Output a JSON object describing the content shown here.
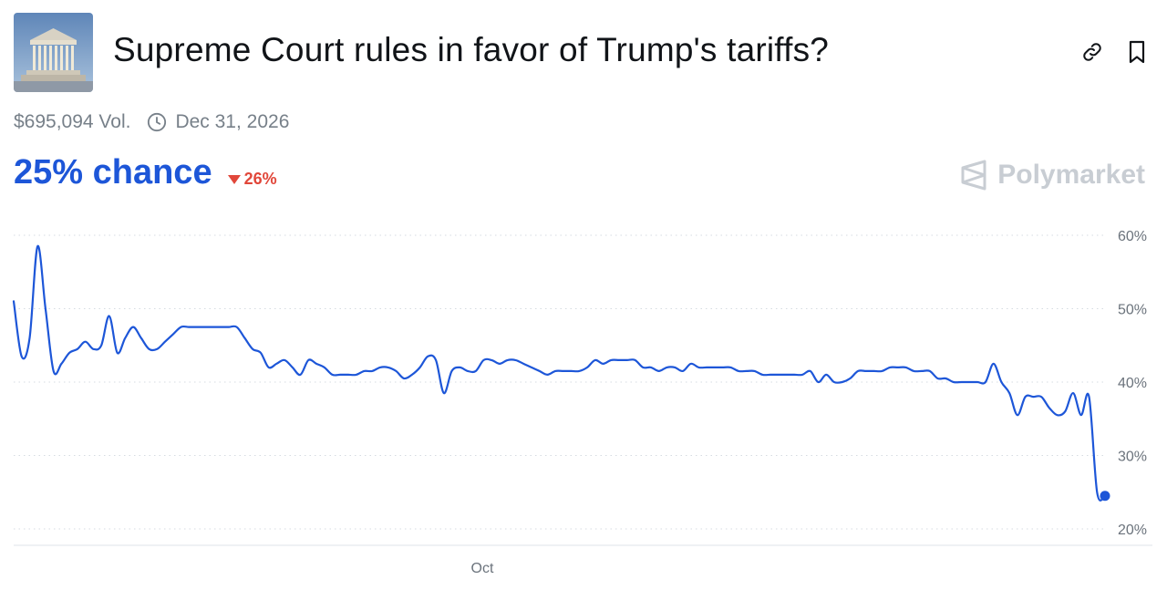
{
  "header": {
    "title": "Supreme Court rules in favor of Trump's tariffs?",
    "thumbnail_icon": "supreme-court-building-image",
    "actions": [
      {
        "name": "link-icon"
      },
      {
        "name": "bookmark-icon"
      }
    ]
  },
  "meta": {
    "volume": "$695,094 Vol.",
    "end_date": "Dec 31, 2026"
  },
  "summary": {
    "chance": "25% chance",
    "change": "26%",
    "change_direction": "down",
    "accent_color": "#1d56d8",
    "change_color": "#e1473a"
  },
  "brand": {
    "name": "Polymarket"
  },
  "chart_data": {
    "type": "line",
    "title": "",
    "xlabel": "",
    "ylabel": "",
    "y_unit": "%",
    "ylim": [
      20,
      60
    ],
    "y_ticks": [
      60,
      50,
      40,
      30,
      20
    ],
    "y_tick_labels": [
      "60%",
      "50%",
      "40%",
      "30%",
      "20%"
    ],
    "x_tick_labels": [
      "Oct"
    ],
    "grid": true,
    "line_color": "#1d56d8",
    "series": [
      {
        "values": [
          51,
          43.5,
          46,
          58.5,
          50,
          41.5,
          42.5,
          44,
          44.5,
          45.5,
          44.5,
          45,
          49,
          44,
          46,
          47.5,
          46,
          44.5,
          44.5,
          45.5,
          46.5,
          47.5,
          47.5,
          47.5,
          47.5,
          47.5,
          47.5,
          47.5,
          47.5,
          46,
          44.5,
          44,
          42,
          42.5,
          43,
          42,
          41,
          43,
          42.5,
          42,
          41,
          41,
          41,
          41,
          41.5,
          41.5,
          42,
          42,
          41.5,
          40.5,
          41,
          42,
          43.5,
          43,
          38.5,
          41.5,
          42,
          41.5,
          41.5,
          43,
          43,
          42.5,
          43,
          43,
          42.5,
          42,
          41.5,
          41,
          41.5,
          41.5,
          41.5,
          41.5,
          42,
          43,
          42.5,
          43,
          43,
          43,
          43,
          42,
          42,
          41.5,
          42,
          42,
          41.5,
          42.5,
          42,
          42,
          42,
          42,
          42,
          41.5,
          41.5,
          41.5,
          41,
          41,
          41,
          41,
          41,
          41,
          41.5,
          40,
          41,
          40,
          40,
          40.5,
          41.5,
          41.5,
          41.5,
          41.5,
          42,
          42,
          42,
          41.5,
          41.5,
          41.5,
          40.5,
          40.5,
          40,
          40,
          40,
          40,
          40,
          42.5,
          40,
          38.5,
          35.5,
          38,
          38,
          38,
          36.5,
          35.5,
          36,
          38.5,
          35.5,
          38,
          25,
          24.5
        ]
      }
    ]
  }
}
